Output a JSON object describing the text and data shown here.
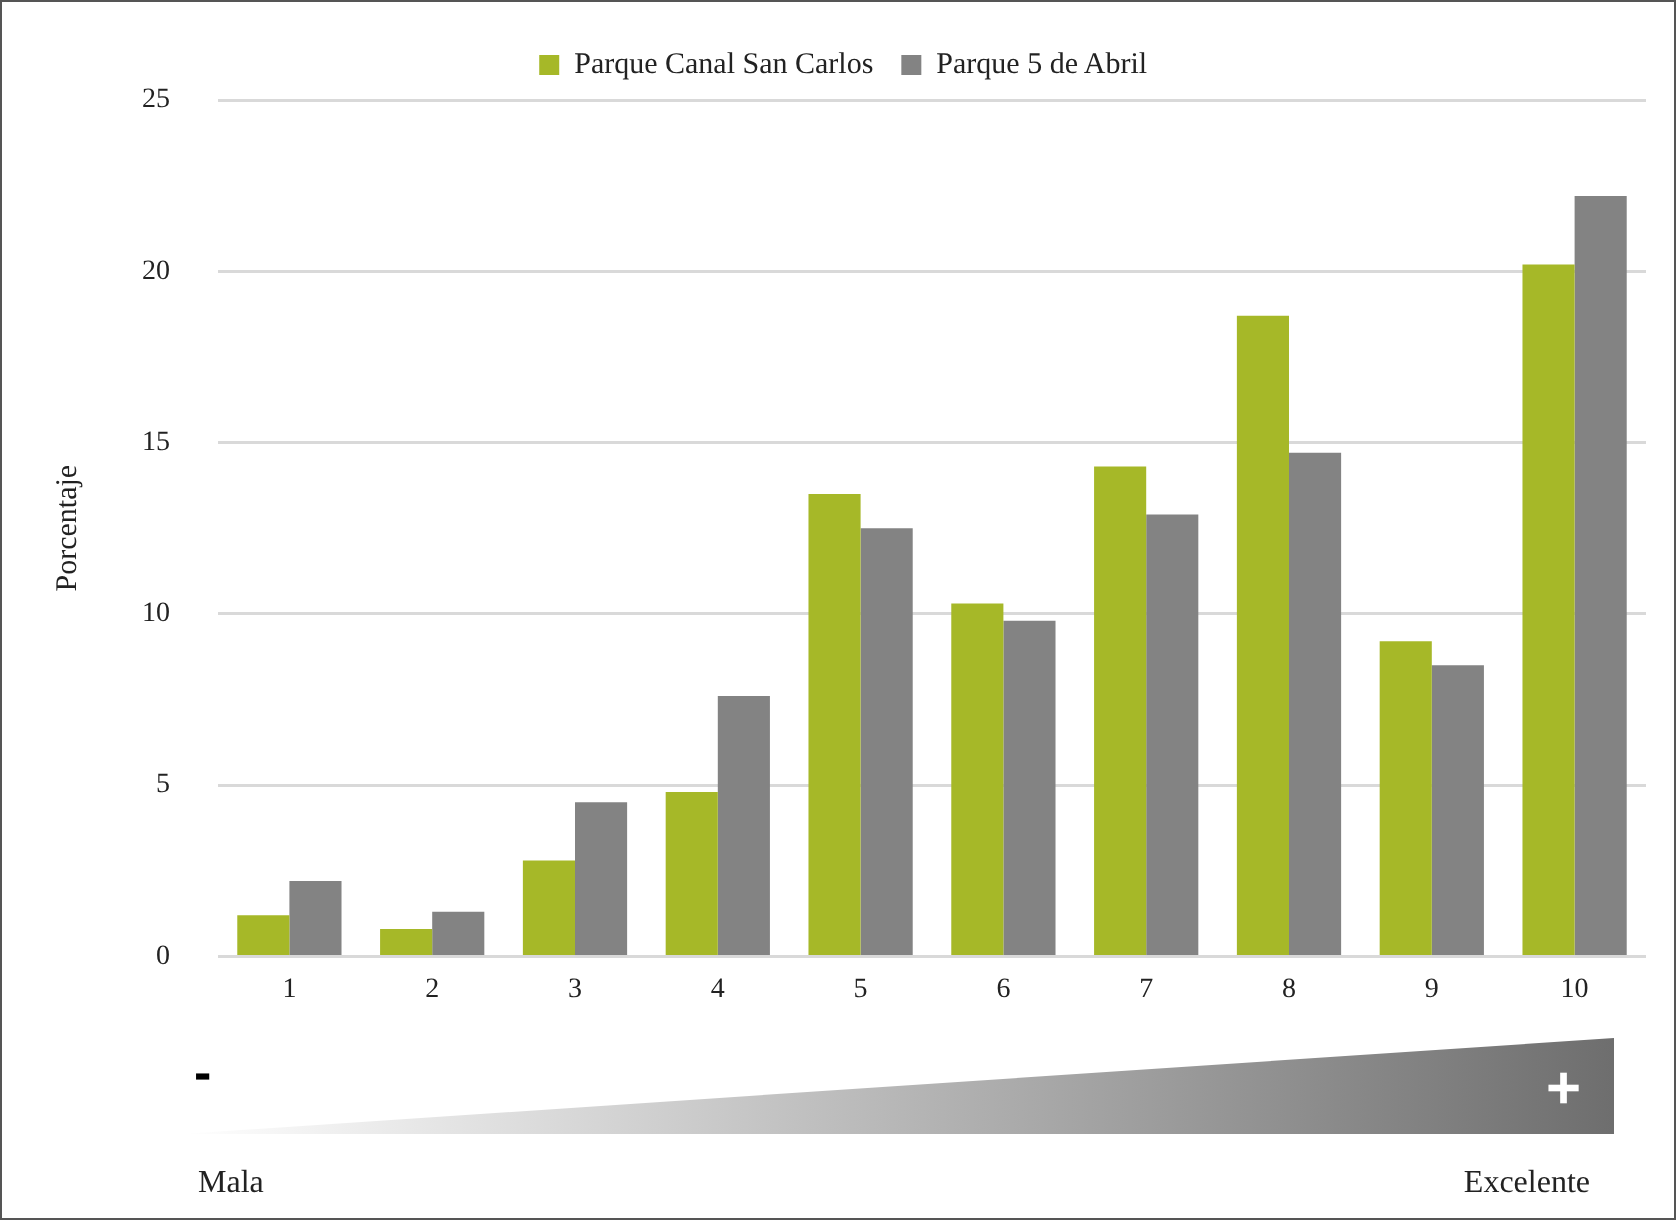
{
  "chart_data": {
    "type": "bar",
    "ylabel": "Porcentaje",
    "categories": [
      "1",
      "2",
      "3",
      "4",
      "5",
      "6",
      "7",
      "8",
      "9",
      "10"
    ],
    "series": [
      {
        "name": "Parque Canal San Carlos",
        "color": "#a6b828",
        "values": [
          1.2,
          0.8,
          2.8,
          4.8,
          13.5,
          10.3,
          14.3,
          18.7,
          9.2,
          20.2
        ]
      },
      {
        "name": "Parque 5 de Abril",
        "color": "#838383",
        "values": [
          2.2,
          1.3,
          4.5,
          7.6,
          12.5,
          9.8,
          12.9,
          14.7,
          8.5,
          22.2
        ]
      }
    ],
    "ylim": [
      0,
      25
    ],
    "yticks": [
      0,
      5,
      10,
      15,
      20,
      25
    ],
    "grid": "y",
    "legend": "top",
    "annotations": [
      "-",
      "+",
      "Mala",
      "Excelente"
    ]
  }
}
